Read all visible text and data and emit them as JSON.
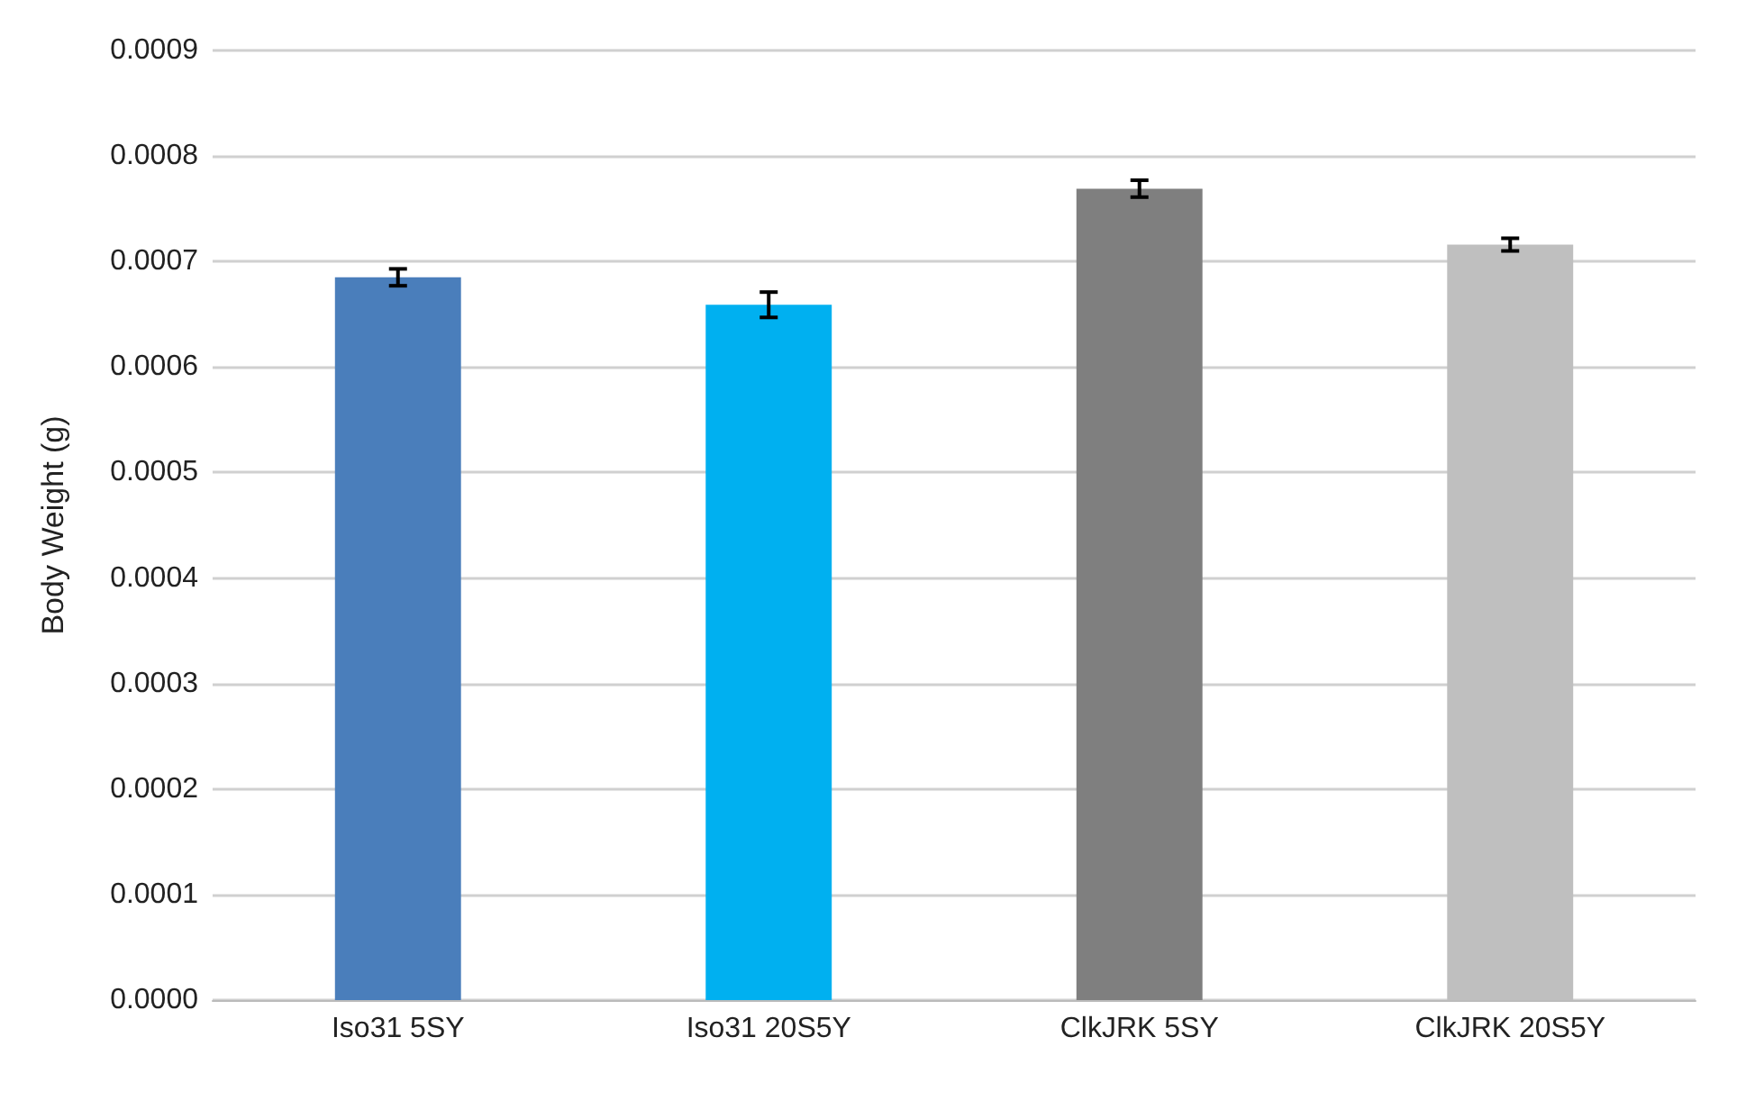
{
  "chart_data": {
    "type": "bar",
    "ylabel": "Body Weight (g)",
    "categories": [
      "Iso31 5SY",
      "Iso31 20S5Y",
      "ClkJRK 5SY",
      "ClkJRK 20S5Y"
    ],
    "values": [
      0.000685,
      0.000659,
      0.000769,
      0.000716
    ],
    "colors": [
      "#4a7ebb",
      "#00b0f0",
      "#7f7f7f",
      "#bfbfbf"
    ],
    "errors": [
      8e-06,
      1.2e-05,
      8e-06,
      6e-06
    ],
    "ylim": [
      0,
      0.0009
    ],
    "yticks": [
      {
        "value": 0,
        "label": "0.0000"
      },
      {
        "value": 0.0001,
        "label": "0.0001"
      },
      {
        "value": 0.0002,
        "label": "0.0002"
      },
      {
        "value": 0.0003,
        "label": "0.0003"
      },
      {
        "value": 0.0004,
        "label": "0.0004"
      },
      {
        "value": 0.0005,
        "label": "0.0005"
      },
      {
        "value": 0.0006,
        "label": "0.0006"
      },
      {
        "value": 0.0007,
        "label": "0.0007"
      },
      {
        "value": 0.0008,
        "label": "0.0008"
      },
      {
        "value": 0.0009,
        "label": "0.0009"
      }
    ],
    "grid": "y"
  }
}
